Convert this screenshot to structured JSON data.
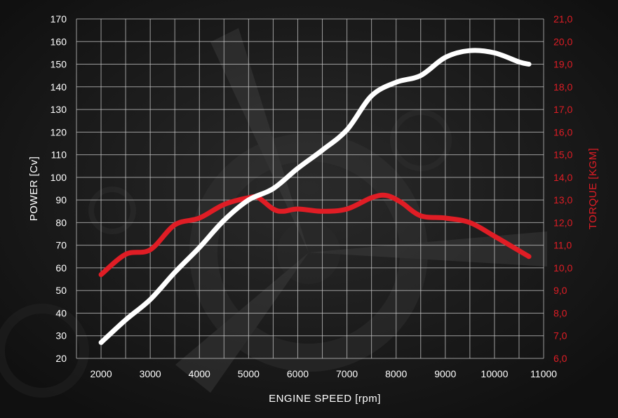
{
  "chart_data": {
    "type": "line",
    "title": "",
    "xlabel": "ENGINE SPEED [rpm]",
    "ylabel": "POWER [Cv]",
    "y2label": "TORQUE [KGM]",
    "xlim": [
      1500,
      11000
    ],
    "ylim": [
      20,
      170
    ],
    "y2lim": [
      6.0,
      21.0
    ],
    "x_ticks": [
      "2000",
      "3000",
      "4000",
      "5000",
      "6000",
      "7000",
      "8000",
      "9000",
      "10000",
      "11000"
    ],
    "y_ticks": [
      "20",
      "30",
      "40",
      "50",
      "60",
      "70",
      "80",
      "90",
      "100",
      "110",
      "120",
      "130",
      "140",
      "150",
      "160",
      "170"
    ],
    "y2_ticks": [
      "6,0",
      "7,0",
      "8,0",
      "9,0",
      "10,0",
      "11,0",
      "12,0",
      "13,0",
      "14,0",
      "15,0",
      "16,0",
      "17,0",
      "18,0",
      "19,0",
      "20,0",
      "21,0"
    ],
    "grid": true,
    "colors": {
      "power": "#ffffff",
      "torque": "#e01d25",
      "grid": "#c8c8c8",
      "background": "#141414"
    },
    "series": [
      {
        "axis": "left",
        "x": [
          2000,
          2500,
          3000,
          3500,
          4000,
          4500,
          5000,
          5500,
          6000,
          6500,
          7000,
          7500,
          8000,
          8500,
          9000,
          9500,
          10000,
          10500,
          10700
        ],
        "values": [
          27,
          37,
          46,
          58,
          69,
          81,
          90,
          95,
          104,
          112,
          121,
          136,
          142,
          145,
          153,
          156,
          155,
          151,
          150
        ]
      },
      {
        "axis": "right",
        "x": [
          2000,
          2500,
          3000,
          3500,
          4000,
          4500,
          5000,
          5200,
          5500,
          5700,
          6000,
          6500,
          7000,
          7500,
          7800,
          8100,
          8500,
          9000,
          9500,
          10000,
          10700
        ],
        "values": [
          9.7,
          10.6,
          10.8,
          11.9,
          12.2,
          12.8,
          13.1,
          13.1,
          12.6,
          12.5,
          12.6,
          12.5,
          12.6,
          13.1,
          13.2,
          12.9,
          12.3,
          12.2,
          12.0,
          11.4,
          10.5
        ]
      }
    ]
  }
}
